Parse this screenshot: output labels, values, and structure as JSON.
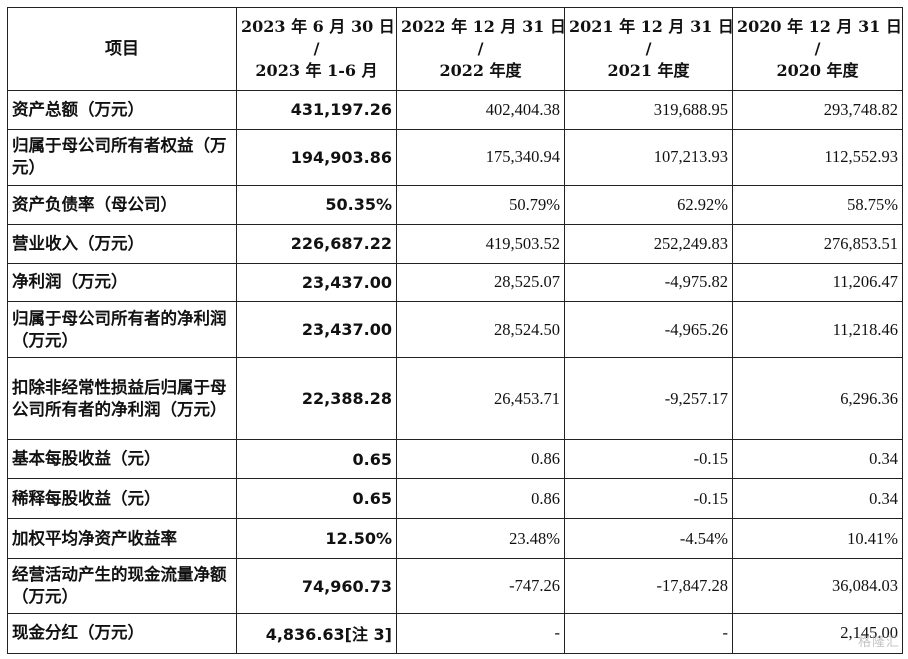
{
  "table": {
    "header": {
      "item": "项目",
      "columns": [
        [
          "2023 年 6 月 30 日",
          "/",
          "2023 年 1-6 月"
        ],
        [
          "2022 年 12 月 31 日",
          "/",
          "2022 年度"
        ],
        [
          "2021 年 12 月 31 日",
          "/",
          "2021 年度"
        ],
        [
          "2020 年 12 月 31 日",
          "/",
          "2020 年度"
        ]
      ]
    },
    "rows": [
      {
        "label": "资产总额（万元）",
        "values": [
          "431,197.26",
          "402,404.38",
          "319,688.95",
          "293,748.82"
        ]
      },
      {
        "label": "归属于母公司所有者权益（万元）",
        "values": [
          "194,903.86",
          "175,340.94",
          "107,213.93",
          "112,552.93"
        ]
      },
      {
        "label": "资产负债率（母公司）",
        "values": [
          "50.35%",
          "50.79%",
          "62.92%",
          "58.75%"
        ]
      },
      {
        "label": "营业收入（万元）",
        "values": [
          "226,687.22",
          "419,503.52",
          "252,249.83",
          "276,853.51"
        ]
      },
      {
        "label": "净利润（万元）",
        "values": [
          "23,437.00",
          "28,525.07",
          "-4,975.82",
          "11,206.47"
        ]
      },
      {
        "label": "归属于母公司所有者的净利润（万元）",
        "values": [
          "23,437.00",
          "28,524.50",
          "-4,965.26",
          "11,218.46"
        ]
      },
      {
        "label": "扣除非经常性损益后归属于母公司所有者的净利润（万元）",
        "values": [
          "22,388.28",
          "26,453.71",
          "-9,257.17",
          "6,296.36"
        ]
      },
      {
        "label": "基本每股收益（元）",
        "values": [
          "0.65",
          "0.86",
          "-0.15",
          "0.34"
        ]
      },
      {
        "label": "稀释每股收益（元）",
        "values": [
          "0.65",
          "0.86",
          "-0.15",
          "0.34"
        ]
      },
      {
        "label": "加权平均净资产收益率",
        "values": [
          "12.50%",
          "23.48%",
          "-4.54%",
          "10.41%"
        ]
      },
      {
        "label": "经营活动产生的现金流量净额（万元）",
        "values": [
          "74,960.73",
          "-747.26",
          "-17,847.28",
          "36,084.03"
        ]
      },
      {
        "label": "现金分红（万元）",
        "values": [
          "4,836.63[注 3]",
          "-",
          "-",
          "2,145.00"
        ]
      }
    ]
  },
  "watermark": "格隆汇"
}
